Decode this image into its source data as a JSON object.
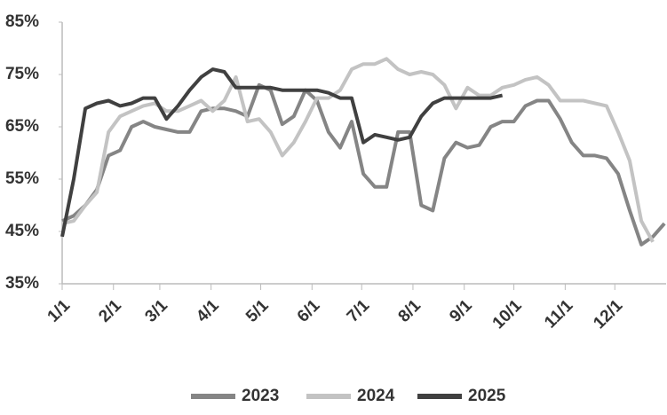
{
  "chart_data": {
    "type": "line",
    "x": [
      1,
      8,
      15,
      22,
      29,
      36,
      43,
      50,
      57,
      64,
      71,
      78,
      85,
      92,
      99,
      106,
      113,
      120,
      127,
      134,
      141,
      148,
      155,
      162,
      169,
      176,
      183,
      190,
      197,
      204,
      211,
      218,
      225,
      232,
      239,
      246,
      253,
      260,
      267,
      274,
      281,
      288,
      295,
      302,
      309,
      316,
      323,
      330,
      337,
      344,
      351,
      358,
      365
    ],
    "xlim": [
      1,
      366
    ],
    "xticks": [
      {
        "value": 1,
        "label": "1/1"
      },
      {
        "value": 32,
        "label": "2/1"
      },
      {
        "value": 60,
        "label": "3/1"
      },
      {
        "value": 91,
        "label": "4/1"
      },
      {
        "value": 121,
        "label": "5/1"
      },
      {
        "value": 152,
        "label": "6/1"
      },
      {
        "value": 182,
        "label": "7/1"
      },
      {
        "value": 213,
        "label": "8/1"
      },
      {
        "value": 244,
        "label": "9/1"
      },
      {
        "value": 274,
        "label": "10/1"
      },
      {
        "value": 305,
        "label": "11/1"
      },
      {
        "value": 335,
        "label": "12/1"
      }
    ],
    "ylim": [
      35,
      85
    ],
    "yticks": [
      {
        "value": 35,
        "label": "35%"
      },
      {
        "value": 45,
        "label": "45%"
      },
      {
        "value": 55,
        "label": "55%"
      },
      {
        "value": 65,
        "label": "65%"
      },
      {
        "value": 75,
        "label": "75%"
      },
      {
        "value": 85,
        "label": "85%"
      }
    ],
    "grid": false,
    "legend": "bottom",
    "series": [
      {
        "name": "2023",
        "color": "#858585",
        "values": [
          47,
          48,
          50,
          53,
          59.5,
          60.5,
          65,
          66,
          65,
          64.5,
          64,
          64,
          68,
          68.5,
          68.5,
          68,
          67,
          73,
          72,
          65.5,
          67,
          72,
          70,
          64,
          61,
          66,
          56,
          53.5,
          53.5,
          64,
          64,
          50,
          49,
          59,
          62,
          61,
          61.5,
          65,
          66,
          66,
          69,
          70,
          70,
          66.5,
          62,
          59.5,
          59.5,
          59,
          56,
          49,
          42.5,
          44,
          46.5
        ]
      },
      {
        "name": "2024",
        "color": "#c3c3c3",
        "values": [
          46.5,
          47,
          50,
          52.5,
          64,
          67,
          68,
          69,
          69.5,
          68,
          68,
          69,
          70,
          68,
          70,
          74.5,
          66,
          66.5,
          64,
          59.5,
          62,
          66,
          70.5,
          70.5,
          72,
          76,
          77,
          77,
          78,
          76,
          75,
          75.5,
          75,
          73,
          68.5,
          72.5,
          71,
          71,
          72.5,
          73,
          74,
          74.5,
          73,
          70,
          70,
          70,
          69.5,
          69,
          64,
          58.5,
          47,
          43,
          null
        ]
      },
      {
        "name": "2025",
        "color": "#404040",
        "values": [
          44,
          55,
          68.5,
          69.5,
          70,
          69,
          69.5,
          70.5,
          70.5,
          66.5,
          69,
          72,
          74.5,
          76,
          75.5,
          72.5,
          72.5,
          72.5,
          72.5,
          72,
          72,
          72,
          72,
          71.5,
          70.5,
          70.5,
          62,
          63.5,
          63,
          62.5,
          63,
          67,
          69.5,
          70.5,
          70.5,
          70.5,
          70.5,
          70.5,
          71,
          null,
          null,
          null,
          null,
          null,
          null,
          null,
          null,
          null,
          null,
          null,
          null,
          null,
          null
        ]
      }
    ]
  }
}
